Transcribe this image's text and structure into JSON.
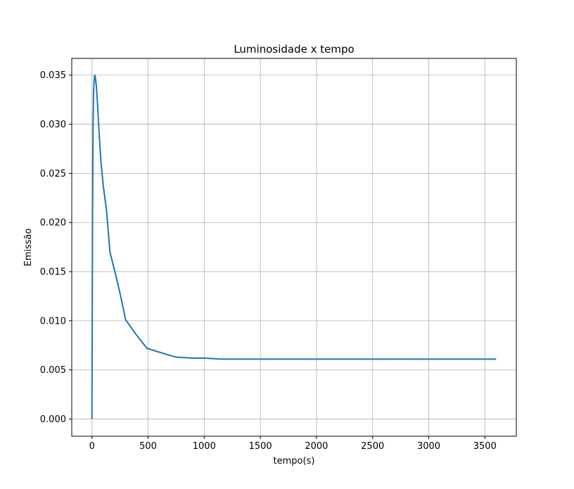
{
  "chart_data": {
    "type": "line",
    "title": "Luminosidade x tempo",
    "xlabel": "tempo(s)",
    "ylabel": "Emissão",
    "xlim": [
      -180,
      3780
    ],
    "ylim": [
      -0.00175,
      0.0367
    ],
    "xticks": [
      0,
      500,
      1000,
      1500,
      2000,
      2500,
      3000,
      3500
    ],
    "xtick_labels": [
      "0",
      "500",
      "1000",
      "1500",
      "2000",
      "2500",
      "3000",
      "3500"
    ],
    "yticks": [
      0.0,
      0.005,
      0.01,
      0.015,
      0.02,
      0.025,
      0.03,
      0.035
    ],
    "ytick_labels": [
      "0.000",
      "0.005",
      "0.010",
      "0.015",
      "0.020",
      "0.025",
      "0.030",
      "0.035"
    ],
    "grid": true,
    "color": "#1f77b4",
    "series": [
      {
        "x": [
          0,
          2,
          5,
          10,
          15,
          20,
          25,
          30,
          40,
          50,
          60,
          80,
          100,
          130,
          160,
          200,
          250,
          300,
          400,
          490,
          600,
          750,
          900,
          1000,
          1150,
          1300,
          1500,
          2000,
          2500,
          3000,
          3600
        ],
        "y": [
          0.0,
          0.008,
          0.02,
          0.03,
          0.0335,
          0.0346,
          0.035,
          0.0348,
          0.0338,
          0.032,
          0.0298,
          0.0262,
          0.0238,
          0.0212,
          0.017,
          0.0152,
          0.0128,
          0.0101,
          0.0085,
          0.0072,
          0.0068,
          0.0063,
          0.0062,
          0.0062,
          0.0061,
          0.0061,
          0.0061,
          0.0061,
          0.0061,
          0.0061,
          0.0061
        ]
      }
    ]
  }
}
